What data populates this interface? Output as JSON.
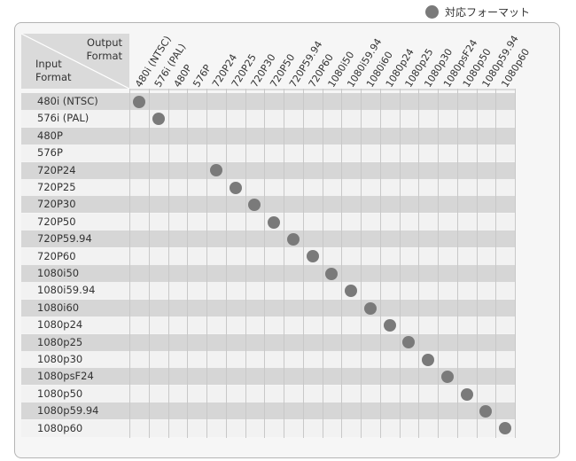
{
  "legend": {
    "label": "対応フォーマット",
    "dot_color": "#7a7a7a"
  },
  "header": {
    "output_line1": "Output",
    "output_line2": "Format",
    "input_line1": "Input",
    "input_line2": "Format"
  },
  "columns": [
    "480i (NTSC)",
    "576i (PAL)",
    "480P",
    "576P",
    "720P24",
    "720P25",
    "720P30",
    "720P50",
    "720P59.94",
    "720P60",
    "1080i50",
    "1080i59.94",
    "1080i60",
    "1080p24",
    "1080p25",
    "1080p30",
    "1080psF24",
    "1080p50",
    "1080p59.94",
    "1080p60"
  ],
  "rows": [
    {
      "label": "480i (NTSC)",
      "supported": 0
    },
    {
      "label": "576i (PAL)",
      "supported": 1
    },
    {
      "label": "480P",
      "supported": null
    },
    {
      "label": "576P",
      "supported": null
    },
    {
      "label": "720P24",
      "supported": 4
    },
    {
      "label": "720P25",
      "supported": 5
    },
    {
      "label": "720P30",
      "supported": 6
    },
    {
      "label": "720P50",
      "supported": 7
    },
    {
      "label": "720P59.94",
      "supported": 8
    },
    {
      "label": "720P60",
      "supported": 9
    },
    {
      "label": "1080i50",
      "supported": 10
    },
    {
      "label": "1080i59.94",
      "supported": 11
    },
    {
      "label": "1080i60",
      "supported": 12
    },
    {
      "label": "1080p24",
      "supported": 13
    },
    {
      "label": "1080p25",
      "supported": 14
    },
    {
      "label": "1080p30",
      "supported": 15
    },
    {
      "label": "1080psF24",
      "supported": 16
    },
    {
      "label": "1080p50",
      "supported": 17
    },
    {
      "label": "1080p59.94",
      "supported": 18
    },
    {
      "label": "1080p60",
      "supported": 19
    }
  ]
}
